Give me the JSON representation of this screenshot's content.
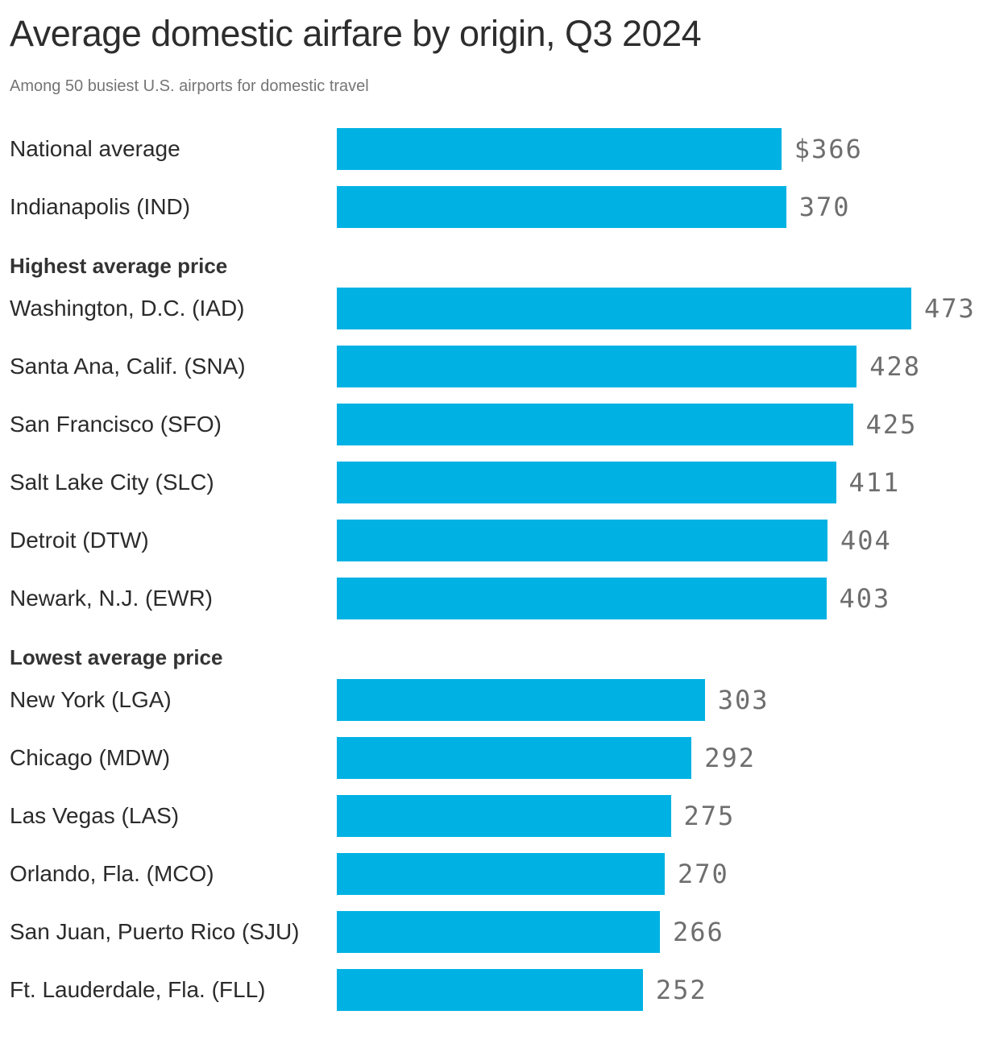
{
  "colors": {
    "bar": "#00b2e3",
    "title_text": "#2d2d2d",
    "subtitle_text": "#757575",
    "heading_text": "#333333",
    "label_text": "#2b2b2b",
    "value_text": "#6e6e6e"
  },
  "chart_data": {
    "type": "bar",
    "orientation": "horizontal",
    "title": "Average domestic airfare by origin, Q3 2024",
    "subtitle": "Among 50 busiest U.S. airports for domestic travel",
    "unit": "USD",
    "value_axis_range": [
      0,
      473
    ],
    "grid": false,
    "legend": false,
    "value_labels_position": "right-of-bar",
    "sections": [
      {
        "heading": null,
        "rows": [
          {
            "label": "National average",
            "value": 366,
            "display": "$366"
          },
          {
            "label": "Indianapolis (IND)",
            "value": 370,
            "display": "370"
          }
        ]
      },
      {
        "heading": "Highest average price",
        "rows": [
          {
            "label": "Washington, D.C. (IAD)",
            "value": 473,
            "display": "473"
          },
          {
            "label": "Santa Ana, Calif. (SNA)",
            "value": 428,
            "display": "428"
          },
          {
            "label": "San Francisco (SFO)",
            "value": 425,
            "display": "425"
          },
          {
            "label": "Salt Lake City (SLC)",
            "value": 411,
            "display": "411"
          },
          {
            "label": "Detroit (DTW)",
            "value": 404,
            "display": "404"
          },
          {
            "label": "Newark, N.J. (EWR)",
            "value": 403,
            "display": "403"
          }
        ]
      },
      {
        "heading": "Lowest average price",
        "rows": [
          {
            "label": "New York (LGA)",
            "value": 303,
            "display": "303"
          },
          {
            "label": "Chicago (MDW)",
            "value": 292,
            "display": "292"
          },
          {
            "label": "Las Vegas (LAS)",
            "value": 275,
            "display": "275"
          },
          {
            "label": "Orlando, Fla. (MCO)",
            "value": 270,
            "display": "270"
          },
          {
            "label": "San Juan, Puerto Rico (SJU)",
            "value": 266,
            "display": "266"
          },
          {
            "label": "Ft. Lauderdale, Fla. (FLL)",
            "value": 252,
            "display": "252"
          }
        ]
      }
    ]
  }
}
